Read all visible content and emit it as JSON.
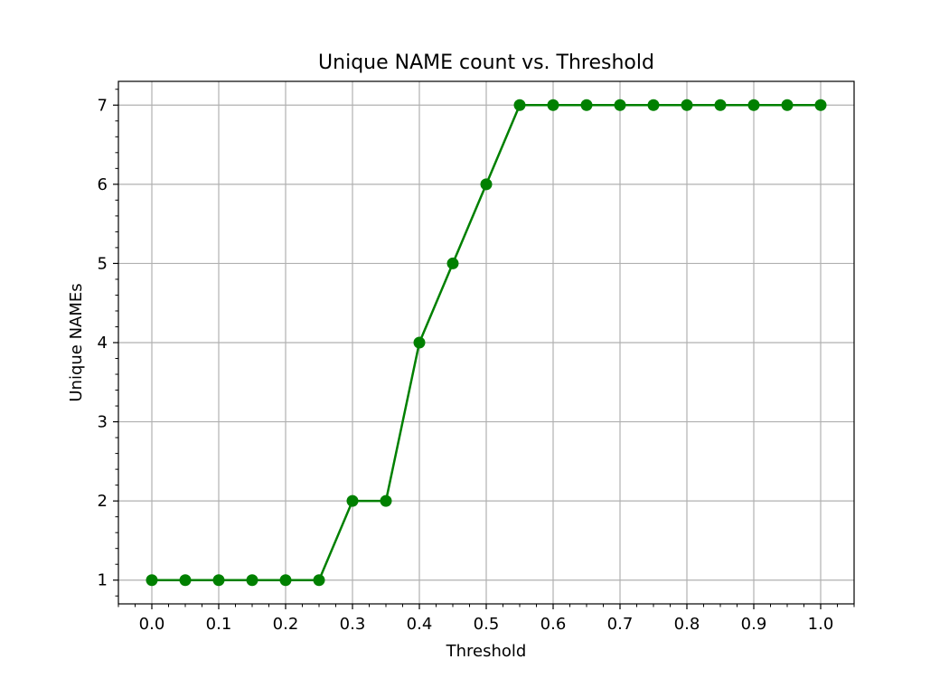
{
  "chart_data": {
    "type": "line",
    "title": "Unique NAME count vs. Threshold",
    "xlabel": "Threshold",
    "ylabel": "Unique NAMEs",
    "xlim": [
      -0.05,
      1.05
    ],
    "ylim": [
      0.7,
      7.3
    ],
    "xticks": [
      0.0,
      0.1,
      0.2,
      0.3,
      0.4,
      0.5,
      0.6,
      0.7,
      0.8,
      0.9,
      1.0
    ],
    "xtick_labels": [
      "0.0",
      "0.1",
      "0.2",
      "0.3",
      "0.4",
      "0.5",
      "0.6",
      "0.7",
      "0.8",
      "0.9",
      "1.0"
    ],
    "yticks": [
      1,
      2,
      3,
      4,
      5,
      6,
      7
    ],
    "ytick_labels": [
      "1",
      "2",
      "3",
      "4",
      "5",
      "6",
      "7"
    ],
    "grid": true,
    "minor_ticks": true,
    "series": [
      {
        "color": "#008000",
        "marker": "circle",
        "x": [
          0.0,
          0.05,
          0.1,
          0.15,
          0.2,
          0.25,
          0.3,
          0.35,
          0.4,
          0.45,
          0.5,
          0.55,
          0.6,
          0.65,
          0.7,
          0.75,
          0.8,
          0.85,
          0.9,
          0.95,
          1.0
        ],
        "y": [
          1,
          1,
          1,
          1,
          1,
          1,
          2,
          2,
          4,
          5,
          6,
          7,
          7,
          7,
          7,
          7,
          7,
          7,
          7,
          7,
          7
        ]
      }
    ]
  }
}
